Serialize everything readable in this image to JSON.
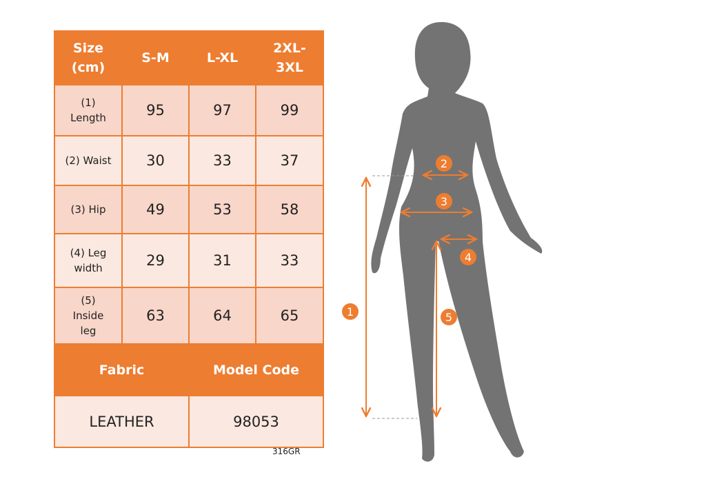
{
  "table": {
    "header": [
      "Size (cm)",
      "S-M",
      "L-XL",
      "2XL-3XL"
    ],
    "rows": [
      {
        "label": "(1) Length",
        "values": [
          "95",
          "97",
          "99"
        ]
      },
      {
        "label": "(2) Waist",
        "values": [
          "30",
          "33",
          "37"
        ]
      },
      {
        "label": "(3) Hip",
        "values": [
          "49",
          "53",
          "58"
        ]
      },
      {
        "label": "(4) Leg width",
        "values": [
          "29",
          "31",
          "33"
        ]
      },
      {
        "label": "(5) Inside leg",
        "values": [
          "63",
          "64",
          "65"
        ]
      }
    ],
    "footer_header": [
      "Fabric",
      "Model Code"
    ],
    "footer_values": [
      "LEATHER",
      "98053"
    ]
  },
  "product_code": "316GR",
  "markers": [
    "1",
    "2",
    "3",
    "4",
    "5"
  ],
  "colors": {
    "accent": "#ed7d31",
    "silhouette": "#737373"
  }
}
